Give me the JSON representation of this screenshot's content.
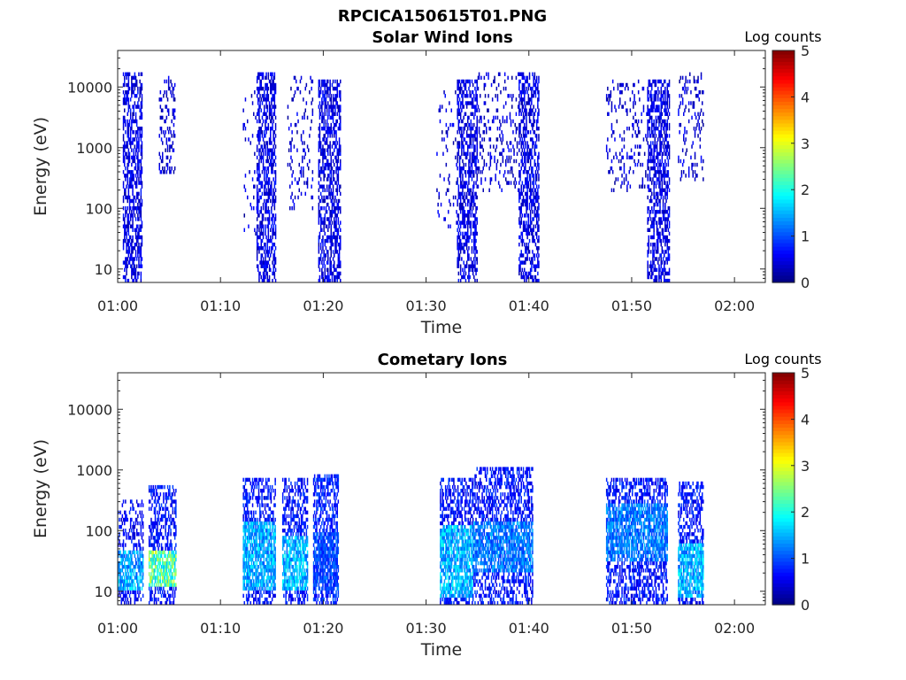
{
  "figure_title": "RPCICA150615T01.PNG",
  "chart_data": [
    {
      "type": "heatmap",
      "title": "Solar Wind Ions",
      "xlabel": "Time",
      "ylabel": "Energy (eV)",
      "y_scale": "log",
      "xlim": [
        "01:00",
        "02:03"
      ],
      "ylim": [
        6,
        40000
      ],
      "x_ticks": [
        "01:00",
        "01:10",
        "01:20",
        "01:30",
        "01:40",
        "01:50",
        "02:00"
      ],
      "y_ticks": [
        "10",
        "100",
        "1000",
        "10000"
      ],
      "colorbar": {
        "label": "Log counts",
        "range": [
          0,
          5
        ],
        "ticks": [
          "0",
          "1",
          "2",
          "3",
          "4",
          "5"
        ],
        "colormap": "jet"
      },
      "grid": false,
      "bursts": [
        {
          "start": "01:00:30",
          "end": "01:02:20",
          "emin": 6,
          "emax": 16000,
          "density": 0.5,
          "base_level": 0.2
        },
        {
          "start": "01:04:00",
          "end": "01:05:30",
          "emin": 400,
          "emax": 14000,
          "density": 0.25,
          "base_level": 0.1
        },
        {
          "start": "01:12:10",
          "end": "01:13:30",
          "emin": 40,
          "emax": 10000,
          "density": 0.08,
          "base_level": 0.1
        },
        {
          "start": "01:13:30",
          "end": "01:15:20",
          "emin": 6,
          "emax": 16000,
          "density": 0.5,
          "base_level": 0.2
        },
        {
          "start": "01:16:30",
          "end": "01:19:00",
          "emin": 100,
          "emax": 15000,
          "density": 0.1,
          "base_level": 0.1
        },
        {
          "start": "01:19:30",
          "end": "01:21:40",
          "emin": 6,
          "emax": 13000,
          "density": 0.5,
          "base_level": 0.2
        },
        {
          "start": "01:31:00",
          "end": "01:33:00",
          "emin": 50,
          "emax": 10000,
          "density": 0.07,
          "base_level": 0.1
        },
        {
          "start": "01:33:00",
          "end": "01:35:00",
          "emin": 6,
          "emax": 13000,
          "density": 0.5,
          "base_level": 0.2
        },
        {
          "start": "01:35:00",
          "end": "01:39:00",
          "emin": 200,
          "emax": 17000,
          "density": 0.15,
          "base_level": 0.1
        },
        {
          "start": "01:39:00",
          "end": "01:41:00",
          "emin": 6,
          "emax": 16000,
          "density": 0.5,
          "base_level": 0.2
        },
        {
          "start": "01:47:30",
          "end": "01:51:30",
          "emin": 200,
          "emax": 13000,
          "density": 0.12,
          "base_level": 0.1
        },
        {
          "start": "01:51:30",
          "end": "01:53:40",
          "emin": 6,
          "emax": 12000,
          "density": 0.5,
          "base_level": 0.2
        },
        {
          "start": "01:54:30",
          "end": "01:57:00",
          "emin": 300,
          "emax": 16000,
          "density": 0.15,
          "base_level": 0.1
        }
      ]
    },
    {
      "type": "heatmap",
      "title": "Cometary Ions",
      "xlabel": "Time",
      "ylabel": "Energy (eV)",
      "y_scale": "log",
      "xlim": [
        "01:00",
        "02:03"
      ],
      "ylim": [
        6,
        40000
      ],
      "x_ticks": [
        "01:00",
        "01:10",
        "01:20",
        "01:30",
        "01:40",
        "01:50",
        "02:00"
      ],
      "y_ticks": [
        "10",
        "100",
        "1000",
        "10000"
      ],
      "colorbar": {
        "label": "Log counts",
        "range": [
          0,
          5
        ],
        "ticks": [
          "0",
          "1",
          "2",
          "3",
          "4",
          "5"
        ],
        "colormap": "jet"
      },
      "grid": false,
      "bursts": [
        {
          "start": "01:00:00",
          "end": "01:02:30",
          "emin": 6,
          "emax": 300,
          "density": 0.4,
          "base_level": 0.3,
          "hot_emin": 10,
          "hot_emax": 50,
          "hot_level": 1.8
        },
        {
          "start": "01:03:00",
          "end": "01:05:40",
          "emin": 6,
          "emax": 500,
          "density": 0.45,
          "base_level": 0.4,
          "hot_emin": 12,
          "hot_emax": 50,
          "hot_level": 2.8
        },
        {
          "start": "01:12:10",
          "end": "01:15:20",
          "emin": 6,
          "emax": 700,
          "density": 0.45,
          "base_level": 0.4,
          "hot_emin": 10,
          "hot_emax": 150,
          "hot_level": 1.8
        },
        {
          "start": "01:16:00",
          "end": "01:18:30",
          "emin": 6,
          "emax": 700,
          "density": 0.45,
          "base_level": 0.4,
          "hot_emin": 10,
          "hot_emax": 80,
          "hot_level": 1.9
        },
        {
          "start": "01:19:00",
          "end": "01:21:30",
          "emin": 6,
          "emax": 800,
          "density": 0.5,
          "base_level": 0.5,
          "hot_emin": 10,
          "hot_emax": 100,
          "hot_level": 1.2
        },
        {
          "start": "01:31:20",
          "end": "01:34:30",
          "emin": 6,
          "emax": 700,
          "density": 0.45,
          "base_level": 0.4,
          "hot_emin": 8,
          "hot_emax": 120,
          "hot_level": 1.9
        },
        {
          "start": "01:34:30",
          "end": "01:40:20",
          "emin": 6,
          "emax": 1000,
          "density": 0.45,
          "base_level": 0.4,
          "hot_emin": 20,
          "hot_emax": 150,
          "hot_level": 1.5
        },
        {
          "start": "01:47:30",
          "end": "01:53:30",
          "emin": 6,
          "emax": 700,
          "density": 0.45,
          "base_level": 0.4,
          "hot_emin": 30,
          "hot_emax": 300,
          "hot_level": 1.5
        },
        {
          "start": "01:54:30",
          "end": "01:57:00",
          "emin": 6,
          "emax": 600,
          "density": 0.45,
          "base_level": 0.4,
          "hot_emin": 8,
          "hot_emax": 60,
          "hot_level": 1.9
        }
      ]
    }
  ]
}
